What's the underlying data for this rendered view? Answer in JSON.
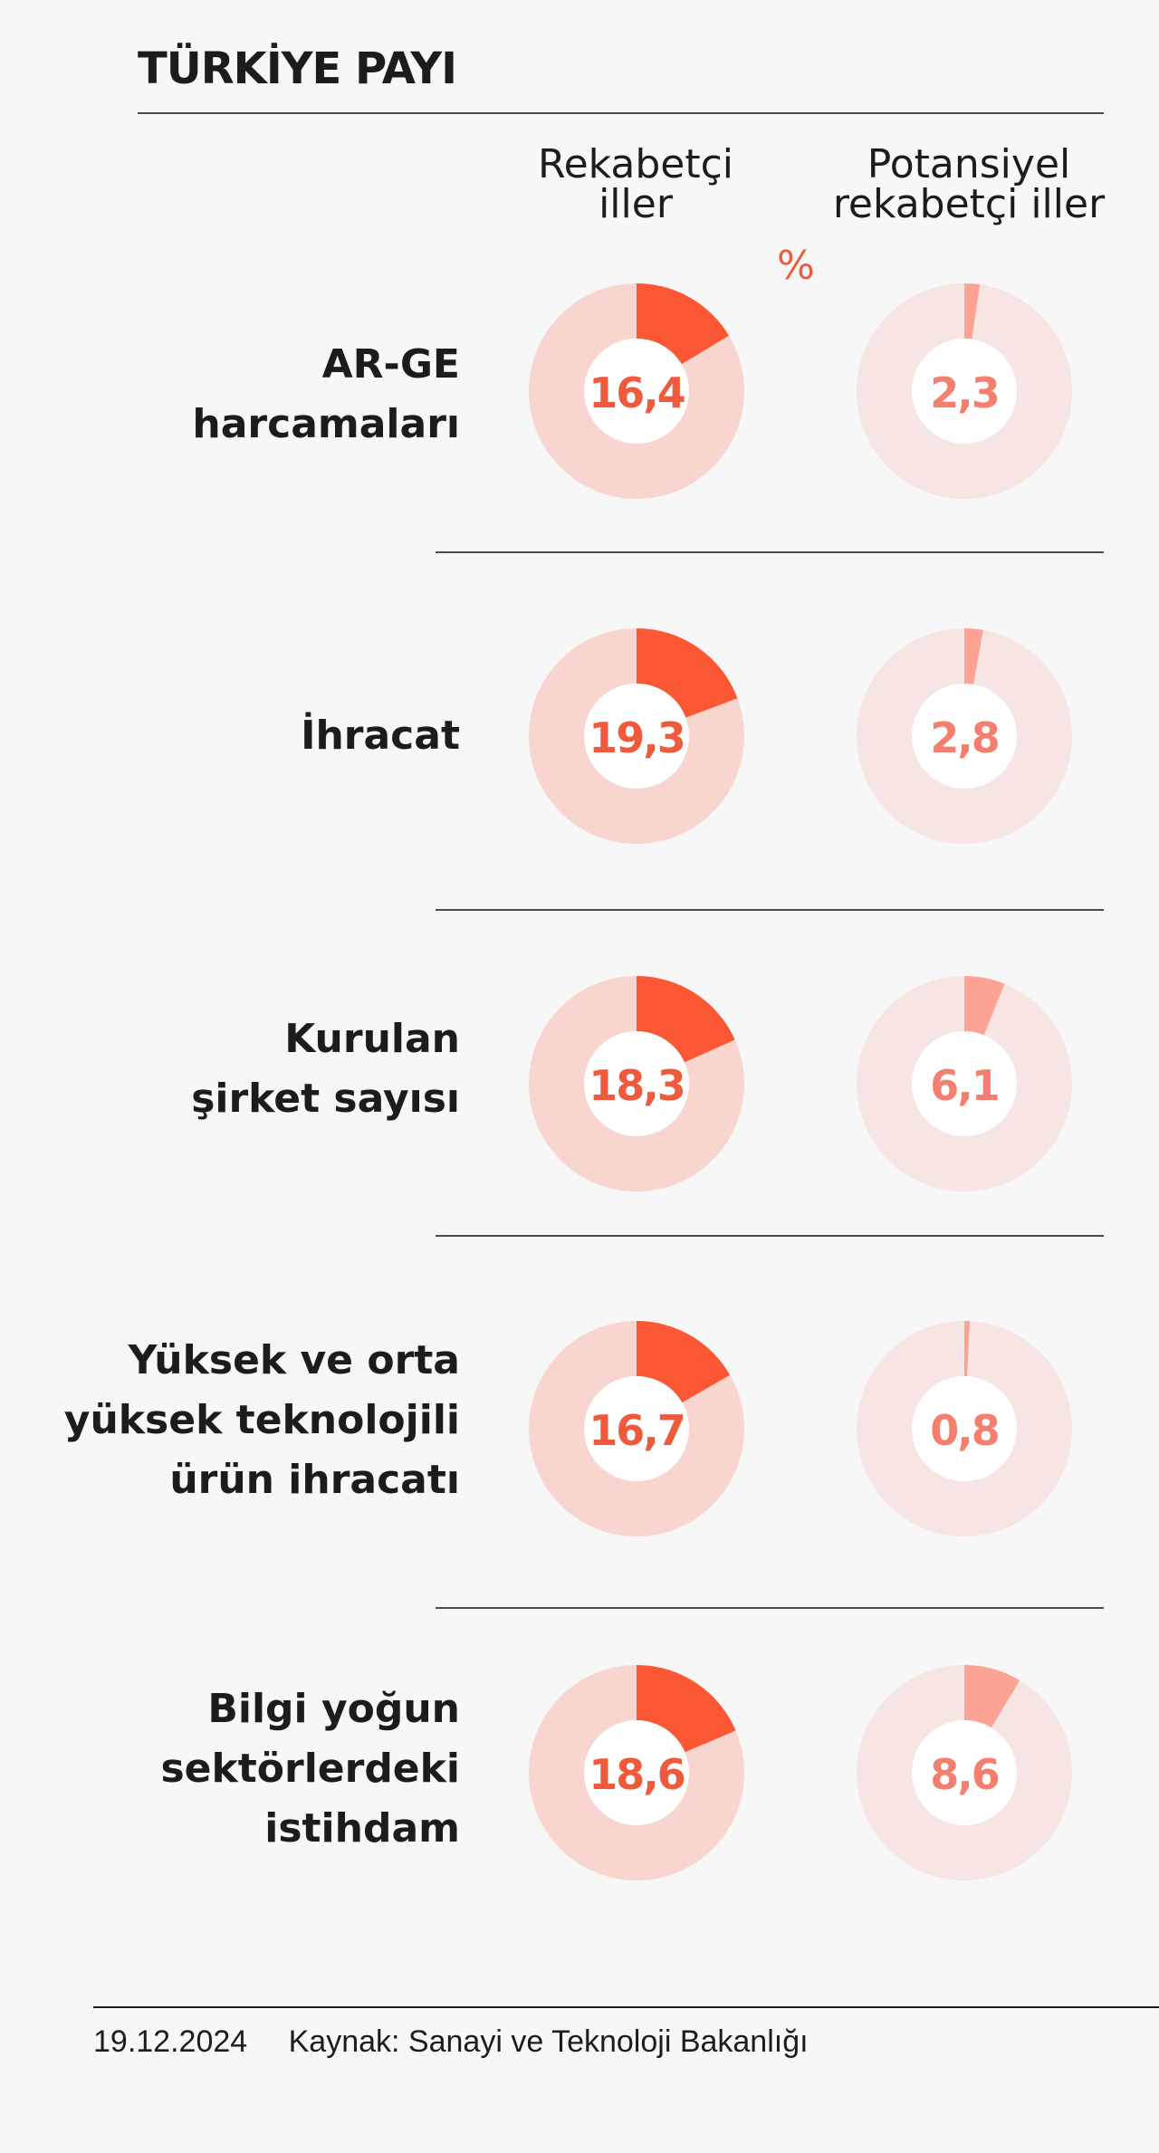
{
  "title": "TÜRKİYE PAYI",
  "unit": "%",
  "columns": {
    "competitive": [
      "Rekabetçi",
      "iller"
    ],
    "potential": [
      "Potansiyel",
      "rekabetçi iller"
    ]
  },
  "colors": {
    "competitive_fill": "#fb5734",
    "competitive_track": "#f8d6cf",
    "competitive_text": "#f05a3c",
    "potential_fill": "#fca394",
    "potential_track": "#f7e5e3",
    "potential_text": "#f57f6e",
    "center": "#ffffff"
  },
  "chart_data": {
    "type": "pie",
    "variant": "donut",
    "title": "TÜRKİYE PAYI",
    "unit": "%",
    "series": [
      {
        "name": "Rekabetçi iller",
        "values": [
          16.4,
          19.3,
          18.3,
          16.7,
          18.6
        ]
      },
      {
        "name": "Potansiyel rekabetçi iller",
        "values": [
          2.3,
          2.8,
          6.1,
          0.8,
          8.6
        ]
      }
    ],
    "categories": [
      "AR-GE harcamaları",
      "İhracat",
      "Kurulan şirket sayısı",
      "Yüksek ve orta yüksek teknolojili ürün ihracatı",
      "Bilgi yoğun sektörlerdeki istihdam"
    ],
    "rows": [
      {
        "label_lines": [
          "AR-GE",
          "harcamaları"
        ],
        "competitive": 16.4,
        "competitive_text": "16,4",
        "potential": 2.3,
        "potential_text": "2,3"
      },
      {
        "label_lines": [
          "İhracat"
        ],
        "competitive": 19.3,
        "competitive_text": "19,3",
        "potential": 2.8,
        "potential_text": "2,8"
      },
      {
        "label_lines": [
          "Kurulan",
          "şirket sayısı"
        ],
        "competitive": 18.3,
        "competitive_text": "18,3",
        "potential": 6.1,
        "potential_text": "6,1"
      },
      {
        "label_lines": [
          "Yüksek ve orta",
          "yüksek teknolojili",
          "ürün ihracatı"
        ],
        "competitive": 16.7,
        "competitive_text": "16,7",
        "potential": 0.8,
        "potential_text": "0,8"
      },
      {
        "label_lines": [
          "Bilgi yoğun",
          "sektörlerdeki",
          "istihdam"
        ],
        "competitive": 18.6,
        "competitive_text": "18,6",
        "potential": 8.6,
        "potential_text": "8,6"
      }
    ]
  },
  "footer": {
    "date": "19.12.2024",
    "source": "Kaynak: Sanayi ve Teknoloji Bakanlığı"
  }
}
